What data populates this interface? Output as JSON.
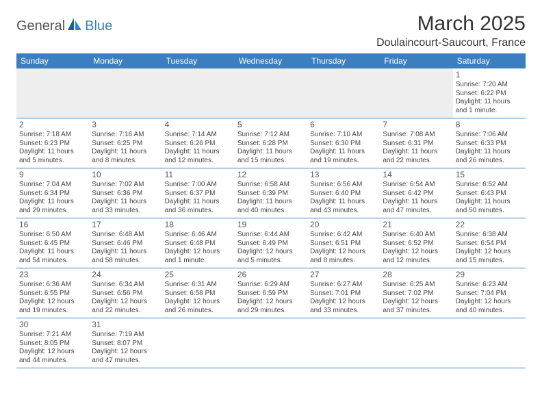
{
  "logo": {
    "text1": "General",
    "text2": "Blue"
  },
  "title": "March 2025",
  "location": "Doulaincourt-Saucourt, France",
  "colors": {
    "header_bg": "#3b7fbf",
    "header_text": "#ffffff",
    "grid_line": "#3b7fbf",
    "blank_bg": "#eeeeee",
    "text": "#444444",
    "logo_gray": "#555555",
    "logo_blue": "#3b7fbf"
  },
  "day_headers": [
    "Sunday",
    "Monday",
    "Tuesday",
    "Wednesday",
    "Thursday",
    "Friday",
    "Saturday"
  ],
  "weeks": [
    [
      null,
      null,
      null,
      null,
      null,
      null,
      {
        "n": "1",
        "sr": "Sunrise: 7:20 AM",
        "ss": "Sunset: 6:22 PM",
        "dl": "Daylight: 11 hours and 1 minute."
      }
    ],
    [
      {
        "n": "2",
        "sr": "Sunrise: 7:18 AM",
        "ss": "Sunset: 6:23 PM",
        "dl": "Daylight: 11 hours and 5 minutes."
      },
      {
        "n": "3",
        "sr": "Sunrise: 7:16 AM",
        "ss": "Sunset: 6:25 PM",
        "dl": "Daylight: 11 hours and 8 minutes."
      },
      {
        "n": "4",
        "sr": "Sunrise: 7:14 AM",
        "ss": "Sunset: 6:26 PM",
        "dl": "Daylight: 11 hours and 12 minutes."
      },
      {
        "n": "5",
        "sr": "Sunrise: 7:12 AM",
        "ss": "Sunset: 6:28 PM",
        "dl": "Daylight: 11 hours and 15 minutes."
      },
      {
        "n": "6",
        "sr": "Sunrise: 7:10 AM",
        "ss": "Sunset: 6:30 PM",
        "dl": "Daylight: 11 hours and 19 minutes."
      },
      {
        "n": "7",
        "sr": "Sunrise: 7:08 AM",
        "ss": "Sunset: 6:31 PM",
        "dl": "Daylight: 11 hours and 22 minutes."
      },
      {
        "n": "8",
        "sr": "Sunrise: 7:06 AM",
        "ss": "Sunset: 6:33 PM",
        "dl": "Daylight: 11 hours and 26 minutes."
      }
    ],
    [
      {
        "n": "9",
        "sr": "Sunrise: 7:04 AM",
        "ss": "Sunset: 6:34 PM",
        "dl": "Daylight: 11 hours and 29 minutes."
      },
      {
        "n": "10",
        "sr": "Sunrise: 7:02 AM",
        "ss": "Sunset: 6:36 PM",
        "dl": "Daylight: 11 hours and 33 minutes."
      },
      {
        "n": "11",
        "sr": "Sunrise: 7:00 AM",
        "ss": "Sunset: 6:37 PM",
        "dl": "Daylight: 11 hours and 36 minutes."
      },
      {
        "n": "12",
        "sr": "Sunrise: 6:58 AM",
        "ss": "Sunset: 6:39 PM",
        "dl": "Daylight: 11 hours and 40 minutes."
      },
      {
        "n": "13",
        "sr": "Sunrise: 6:56 AM",
        "ss": "Sunset: 6:40 PM",
        "dl": "Daylight: 11 hours and 43 minutes."
      },
      {
        "n": "14",
        "sr": "Sunrise: 6:54 AM",
        "ss": "Sunset: 6:42 PM",
        "dl": "Daylight: 11 hours and 47 minutes."
      },
      {
        "n": "15",
        "sr": "Sunrise: 6:52 AM",
        "ss": "Sunset: 6:43 PM",
        "dl": "Daylight: 11 hours and 50 minutes."
      }
    ],
    [
      {
        "n": "16",
        "sr": "Sunrise: 6:50 AM",
        "ss": "Sunset: 6:45 PM",
        "dl": "Daylight: 11 hours and 54 minutes."
      },
      {
        "n": "17",
        "sr": "Sunrise: 6:48 AM",
        "ss": "Sunset: 6:46 PM",
        "dl": "Daylight: 11 hours and 58 minutes."
      },
      {
        "n": "18",
        "sr": "Sunrise: 6:46 AM",
        "ss": "Sunset: 6:48 PM",
        "dl": "Daylight: 12 hours and 1 minute."
      },
      {
        "n": "19",
        "sr": "Sunrise: 6:44 AM",
        "ss": "Sunset: 6:49 PM",
        "dl": "Daylight: 12 hours and 5 minutes."
      },
      {
        "n": "20",
        "sr": "Sunrise: 6:42 AM",
        "ss": "Sunset: 6:51 PM",
        "dl": "Daylight: 12 hours and 8 minutes."
      },
      {
        "n": "21",
        "sr": "Sunrise: 6:40 AM",
        "ss": "Sunset: 6:52 PM",
        "dl": "Daylight: 12 hours and 12 minutes."
      },
      {
        "n": "22",
        "sr": "Sunrise: 6:38 AM",
        "ss": "Sunset: 6:54 PM",
        "dl": "Daylight: 12 hours and 15 minutes."
      }
    ],
    [
      {
        "n": "23",
        "sr": "Sunrise: 6:36 AM",
        "ss": "Sunset: 6:55 PM",
        "dl": "Daylight: 12 hours and 19 minutes."
      },
      {
        "n": "24",
        "sr": "Sunrise: 6:34 AM",
        "ss": "Sunset: 6:56 PM",
        "dl": "Daylight: 12 hours and 22 minutes."
      },
      {
        "n": "25",
        "sr": "Sunrise: 6:31 AM",
        "ss": "Sunset: 6:58 PM",
        "dl": "Daylight: 12 hours and 26 minutes."
      },
      {
        "n": "26",
        "sr": "Sunrise: 6:29 AM",
        "ss": "Sunset: 6:59 PM",
        "dl": "Daylight: 12 hours and 29 minutes."
      },
      {
        "n": "27",
        "sr": "Sunrise: 6:27 AM",
        "ss": "Sunset: 7:01 PM",
        "dl": "Daylight: 12 hours and 33 minutes."
      },
      {
        "n": "28",
        "sr": "Sunrise: 6:25 AM",
        "ss": "Sunset: 7:02 PM",
        "dl": "Daylight: 12 hours and 37 minutes."
      },
      {
        "n": "29",
        "sr": "Sunrise: 6:23 AM",
        "ss": "Sunset: 7:04 PM",
        "dl": "Daylight: 12 hours and 40 minutes."
      }
    ],
    [
      {
        "n": "30",
        "sr": "Sunrise: 7:21 AM",
        "ss": "Sunset: 8:05 PM",
        "dl": "Daylight: 12 hours and 44 minutes."
      },
      {
        "n": "31",
        "sr": "Sunrise: 7:19 AM",
        "ss": "Sunset: 8:07 PM",
        "dl": "Daylight: 12 hours and 47 minutes."
      },
      null,
      null,
      null,
      null,
      null
    ]
  ]
}
